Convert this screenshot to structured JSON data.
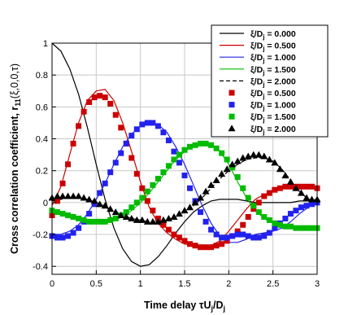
{
  "chart_data": {
    "type": "line",
    "xlabel": "Time delay τU",
    "xlabel_sub1": "j",
    "xlabel_mid": "/D",
    "xlabel_sub2": "j",
    "ylabel": "Cross correlation coefficient, r",
    "ylabel_sub": "11",
    "ylabel_tail": "(ξ,0,0,τ)",
    "xlim": [
      0,
      3
    ],
    "ylim": [
      -0.45,
      1
    ],
    "xticks": [
      "0",
      "0.5",
      "1",
      "1.5",
      "2",
      "2.5",
      "3"
    ],
    "yticks": [
      "-0.4",
      "-0.2",
      "0",
      "0.2",
      "0.4",
      "0.6",
      "0.8",
      "1"
    ],
    "grid": true,
    "legend_position": "top-right",
    "colors": {
      "black": "#000000",
      "red": "#cc0000",
      "blue": "#2222ee",
      "green": "#00bb00"
    },
    "series": [
      {
        "name": "ξ/Dⱼ = 0.000",
        "label_head": "ξ/D",
        "label_sub": "j",
        "label_tail": " = 0.000",
        "style": "line",
        "color": "#000000",
        "dash": false,
        "x": [
          0,
          0.1,
          0.2,
          0.3,
          0.4,
          0.5,
          0.6,
          0.7,
          0.8,
          0.9,
          1.0,
          1.1,
          1.2,
          1.3,
          1.4,
          1.5,
          1.6,
          1.7,
          1.8,
          1.9,
          2.0,
          2.1,
          2.2,
          2.3,
          2.4,
          2.5,
          2.6,
          2.7,
          2.8,
          2.9,
          3.0
        ],
        "y": [
          1.0,
          0.95,
          0.84,
          0.68,
          0.47,
          0.24,
          0.02,
          -0.16,
          -0.29,
          -0.37,
          -0.4,
          -0.39,
          -0.34,
          -0.27,
          -0.19,
          -0.12,
          -0.06,
          -0.02,
          0.01,
          0.02,
          0.02,
          0.02,
          0.01,
          0.0,
          0.0,
          0.0,
          0.0,
          0.0,
          0.01,
          0.01,
          0.02
        ]
      },
      {
        "name": "ξ/Dⱼ = 0.500",
        "label_head": "ξ/D",
        "label_sub": "j",
        "label_tail": " = 0.500",
        "style": "line",
        "color": "#cc0000",
        "dash": false,
        "x": [
          0,
          0.1,
          0.2,
          0.3,
          0.4,
          0.5,
          0.6,
          0.7,
          0.8,
          0.9,
          1.0,
          1.1,
          1.2,
          1.3,
          1.4,
          1.5,
          1.6,
          1.7,
          1.8,
          1.9,
          2.0,
          2.1,
          2.2,
          2.3,
          2.4,
          2.5,
          2.6,
          2.7,
          2.8,
          2.9,
          3.0
        ],
        "y": [
          -0.02,
          0.1,
          0.3,
          0.5,
          0.64,
          0.7,
          0.71,
          0.64,
          0.5,
          0.32,
          0.13,
          -0.03,
          -0.13,
          -0.19,
          -0.23,
          -0.26,
          -0.27,
          -0.28,
          -0.27,
          -0.24,
          -0.18,
          -0.11,
          -0.04,
          0.02,
          0.05,
          0.07,
          0.09,
          0.1,
          0.1,
          0.1,
          0.09
        ]
      },
      {
        "name": "ξ/Dⱼ = 1.000",
        "label_head": "ξ/D",
        "label_sub": "j",
        "label_tail": " = 1.000",
        "style": "line",
        "color": "#2222ee",
        "dash": false,
        "x": [
          0,
          0.1,
          0.2,
          0.3,
          0.4,
          0.5,
          0.6,
          0.7,
          0.8,
          0.9,
          1.0,
          1.1,
          1.2,
          1.3,
          1.4,
          1.5,
          1.6,
          1.7,
          1.8,
          1.9,
          2.0,
          2.1,
          2.2,
          2.3,
          2.4,
          2.5,
          2.6,
          2.7,
          2.8,
          2.9,
          3.0
        ],
        "y": [
          -0.2,
          -0.2,
          -0.18,
          -0.14,
          -0.07,
          0.02,
          0.12,
          0.24,
          0.35,
          0.43,
          0.48,
          0.5,
          0.49,
          0.44,
          0.35,
          0.24,
          0.11,
          -0.02,
          -0.13,
          -0.21,
          -0.25,
          -0.25,
          -0.23,
          -0.2,
          -0.19,
          -0.18,
          -0.16,
          -0.12,
          -0.07,
          -0.03,
          0.0
        ]
      },
      {
        "name": "ξ/Dⱼ = 1.500",
        "label_head": "ξ/D",
        "label_sub": "j",
        "label_tail": " = 1.500",
        "style": "line",
        "color": "#00bb00",
        "dash": false,
        "x": [
          0,
          0.1,
          0.2,
          0.3,
          0.4,
          0.5,
          0.6,
          0.7,
          0.8,
          0.9,
          1.0,
          1.1,
          1.2,
          1.3,
          1.4,
          1.5,
          1.6,
          1.7,
          1.8,
          1.9,
          2.0,
          2.1,
          2.2,
          2.3,
          2.4,
          2.5,
          2.6,
          2.7,
          2.8,
          2.9,
          3.0
        ],
        "y": [
          -0.05,
          -0.06,
          -0.08,
          -0.1,
          -0.11,
          -0.12,
          -0.12,
          -0.11,
          -0.09,
          -0.05,
          0.0,
          0.06,
          0.13,
          0.2,
          0.27,
          0.32,
          0.36,
          0.37,
          0.36,
          0.32,
          0.24,
          0.13,
          0.03,
          -0.05,
          -0.1,
          -0.13,
          -0.15,
          -0.16,
          -0.16,
          -0.16,
          -0.15
        ]
      },
      {
        "name": "ξ/Dⱼ = 2.000",
        "label_head": "ξ/D",
        "label_sub": "j",
        "label_tail": " = 2.000",
        "style": "line",
        "color": "#000000",
        "dash": true,
        "x": [
          0,
          0.1,
          0.2,
          0.3,
          0.4,
          0.5,
          0.6,
          0.7,
          0.8,
          0.9,
          1.0,
          1.1,
          1.2,
          1.3,
          1.4,
          1.5,
          1.6,
          1.7,
          1.8,
          1.9,
          2.0,
          2.1,
          2.2,
          2.3,
          2.4,
          2.5,
          2.6,
          2.7,
          2.8,
          2.9,
          3.0
        ],
        "y": [
          0.01,
          0.02,
          0.03,
          0.03,
          0.02,
          0.0,
          -0.02,
          -0.05,
          -0.08,
          -0.1,
          -0.11,
          -0.12,
          -0.12,
          -0.11,
          -0.09,
          -0.06,
          -0.02,
          0.03,
          0.09,
          0.15,
          0.2,
          0.24,
          0.27,
          0.28,
          0.28,
          0.26,
          0.21,
          0.14,
          0.07,
          0.02,
          0.01
        ]
      },
      {
        "name": "ξ/Dⱼ = 0.500",
        "label_head": "ξ/D",
        "label_sub": "j",
        "label_tail": " = 0.500",
        "style": "square",
        "color": "#cc0000",
        "x": [
          0,
          0.06,
          0.12,
          0.18,
          0.24,
          0.3,
          0.36,
          0.42,
          0.48,
          0.54,
          0.6,
          0.66,
          0.72,
          0.78,
          0.84,
          0.9,
          0.96,
          1.02,
          1.08,
          1.14,
          1.2,
          1.26,
          1.32,
          1.38,
          1.44,
          1.5,
          1.56,
          1.62,
          1.68,
          1.74,
          1.8,
          1.86,
          1.92,
          1.98,
          2.04,
          2.1,
          2.16,
          2.22,
          2.28,
          2.34,
          2.4,
          2.46,
          2.52,
          2.58,
          2.64,
          2.7,
          2.76,
          2.82,
          2.88,
          2.94,
          3.0
        ],
        "y": [
          -0.08,
          0.01,
          0.12,
          0.24,
          0.37,
          0.48,
          0.57,
          0.63,
          0.66,
          0.67,
          0.66,
          0.62,
          0.55,
          0.47,
          0.37,
          0.28,
          0.18,
          0.09,
          0.01,
          -0.05,
          -0.1,
          -0.14,
          -0.17,
          -0.2,
          -0.22,
          -0.24,
          -0.26,
          -0.27,
          -0.28,
          -0.28,
          -0.28,
          -0.27,
          -0.26,
          -0.24,
          -0.21,
          -0.18,
          -0.14,
          -0.09,
          -0.04,
          0.0,
          0.04,
          0.06,
          0.08,
          0.09,
          0.1,
          0.1,
          0.1,
          0.1,
          0.1,
          0.1,
          0.09
        ]
      },
      {
        "name": "ξ/Dⱼ = 1.000",
        "label_head": "ξ/D",
        "label_sub": "j",
        "label_tail": " = 1.000",
        "style": "square",
        "color": "#2222ee",
        "x": [
          0,
          0.06,
          0.12,
          0.18,
          0.24,
          0.3,
          0.36,
          0.42,
          0.48,
          0.54,
          0.6,
          0.66,
          0.72,
          0.78,
          0.84,
          0.9,
          0.96,
          1.02,
          1.08,
          1.14,
          1.2,
          1.26,
          1.32,
          1.38,
          1.44,
          1.5,
          1.56,
          1.62,
          1.68,
          1.74,
          1.8,
          1.86,
          1.92,
          1.98,
          2.04,
          2.1,
          2.16,
          2.22,
          2.28,
          2.34,
          2.4,
          2.46,
          2.52,
          2.58,
          2.64,
          2.7,
          2.76,
          2.82,
          2.88,
          2.94,
          3.0
        ],
        "y": [
          -0.21,
          -0.22,
          -0.22,
          -0.21,
          -0.19,
          -0.16,
          -0.12,
          -0.07,
          -0.01,
          0.06,
          0.12,
          0.19,
          0.25,
          0.31,
          0.37,
          0.42,
          0.46,
          0.49,
          0.5,
          0.5,
          0.48,
          0.44,
          0.39,
          0.32,
          0.25,
          0.17,
          0.09,
          0.01,
          -0.06,
          -0.12,
          -0.17,
          -0.2,
          -0.22,
          -0.22,
          -0.21,
          -0.2,
          -0.2,
          -0.21,
          -0.22,
          -0.22,
          -0.21,
          -0.19,
          -0.16,
          -0.13,
          -0.1,
          -0.07,
          -0.05,
          -0.03,
          -0.02,
          -0.01,
          0.0
        ]
      },
      {
        "name": "ξ/Dⱼ = 1.500",
        "label_head": "ξ/D",
        "label_sub": "j",
        "label_tail": " = 1.500",
        "style": "square",
        "color": "#00bb00",
        "x": [
          0,
          0.06,
          0.12,
          0.18,
          0.24,
          0.3,
          0.36,
          0.42,
          0.48,
          0.54,
          0.6,
          0.66,
          0.72,
          0.78,
          0.84,
          0.9,
          0.96,
          1.02,
          1.08,
          1.14,
          1.2,
          1.26,
          1.32,
          1.38,
          1.44,
          1.5,
          1.56,
          1.62,
          1.68,
          1.74,
          1.8,
          1.86,
          1.92,
          1.98,
          2.04,
          2.1,
          2.16,
          2.22,
          2.28,
          2.34,
          2.4,
          2.46,
          2.52,
          2.58,
          2.64,
          2.7,
          2.76,
          2.82,
          2.88,
          2.94,
          3.0
        ],
        "y": [
          -0.05,
          -0.06,
          -0.07,
          -0.08,
          -0.09,
          -0.1,
          -0.11,
          -0.12,
          -0.12,
          -0.12,
          -0.12,
          -0.11,
          -0.1,
          -0.08,
          -0.06,
          -0.03,
          0.0,
          0.03,
          0.07,
          0.11,
          0.15,
          0.19,
          0.23,
          0.27,
          0.3,
          0.33,
          0.35,
          0.36,
          0.37,
          0.37,
          0.36,
          0.34,
          0.31,
          0.27,
          0.22,
          0.16,
          0.09,
          0.03,
          -0.02,
          -0.06,
          -0.09,
          -0.11,
          -0.13,
          -0.14,
          -0.15,
          -0.15,
          -0.16,
          -0.16,
          -0.16,
          -0.16,
          -0.16
        ]
      },
      {
        "name": "ξ/Dⱼ = 2.000",
        "label_head": "ξ/D",
        "label_sub": "j",
        "label_tail": " = 2.000",
        "style": "triangle",
        "color": "#000000",
        "x": [
          0,
          0.06,
          0.12,
          0.18,
          0.24,
          0.3,
          0.36,
          0.42,
          0.48,
          0.54,
          0.6,
          0.66,
          0.72,
          0.78,
          0.84,
          0.9,
          0.96,
          1.02,
          1.08,
          1.14,
          1.2,
          1.26,
          1.32,
          1.38,
          1.44,
          1.5,
          1.56,
          1.62,
          1.68,
          1.74,
          1.8,
          1.86,
          1.92,
          1.98,
          2.04,
          2.1,
          2.16,
          2.22,
          2.28,
          2.34,
          2.4,
          2.46,
          2.52,
          2.58,
          2.64,
          2.7,
          2.76,
          2.82,
          2.88,
          2.94,
          3.0
        ],
        "y": [
          0.03,
          0.04,
          0.04,
          0.04,
          0.04,
          0.04,
          0.03,
          0.02,
          0.01,
          -0.01,
          -0.02,
          -0.04,
          -0.06,
          -0.08,
          -0.09,
          -0.1,
          -0.11,
          -0.11,
          -0.12,
          -0.12,
          -0.12,
          -0.11,
          -0.1,
          -0.09,
          -0.07,
          -0.05,
          -0.03,
          0.0,
          0.03,
          0.07,
          0.11,
          0.14,
          0.18,
          0.21,
          0.24,
          0.26,
          0.28,
          0.29,
          0.3,
          0.3,
          0.29,
          0.27,
          0.25,
          0.21,
          0.17,
          0.13,
          0.09,
          0.06,
          0.03,
          0.02,
          0.02
        ]
      }
    ]
  }
}
